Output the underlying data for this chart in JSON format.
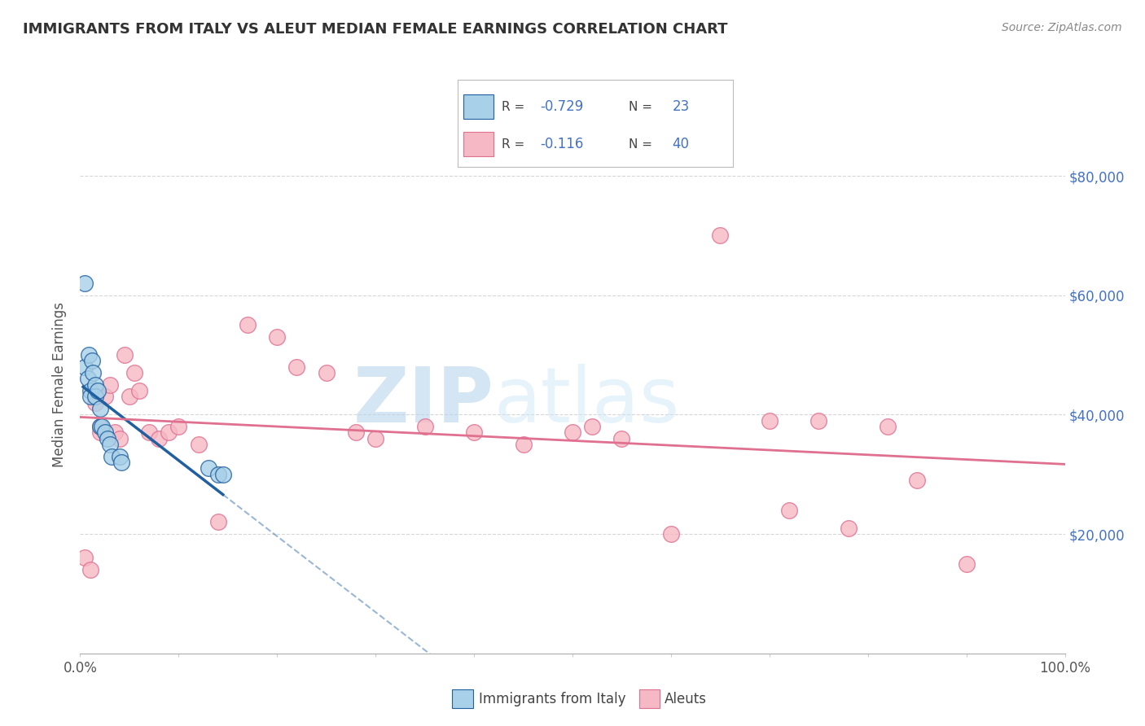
{
  "title": "IMMIGRANTS FROM ITALY VS ALEUT MEDIAN FEMALE EARNINGS CORRELATION CHART",
  "source": "Source: ZipAtlas.com",
  "ylabel": "Median Female Earnings",
  "ytick_labels": [
    "$20,000",
    "$40,000",
    "$60,000",
    "$80,000"
  ],
  "ytick_values": [
    20000,
    40000,
    60000,
    80000
  ],
  "ylim": [
    0,
    90000
  ],
  "xlim": [
    0,
    1.0
  ],
  "italy_color": "#A8D0E8",
  "aleuts_color": "#F5B8C4",
  "italy_line_color": "#2060A0",
  "aleuts_line_color": "#E07090",
  "italy_points_x": [
    0.005,
    0.008,
    0.009,
    0.01,
    0.01,
    0.012,
    0.013,
    0.015,
    0.015,
    0.018,
    0.02,
    0.02,
    0.022,
    0.025,
    0.028,
    0.03,
    0.032,
    0.04,
    0.042,
    0.13,
    0.14,
    0.145,
    0.005
  ],
  "italy_points_y": [
    48000,
    46000,
    50000,
    44000,
    43000,
    49000,
    47000,
    45000,
    43000,
    44000,
    41000,
    38000,
    38000,
    37000,
    36000,
    35000,
    33000,
    33000,
    32000,
    31000,
    30000,
    30000,
    62000
  ],
  "aleuts_points_x": [
    0.005,
    0.01,
    0.015,
    0.02,
    0.02,
    0.025,
    0.03,
    0.035,
    0.04,
    0.045,
    0.05,
    0.055,
    0.06,
    0.07,
    0.08,
    0.09,
    0.1,
    0.12,
    0.14,
    0.17,
    0.2,
    0.22,
    0.25,
    0.28,
    0.3,
    0.35,
    0.4,
    0.45,
    0.5,
    0.52,
    0.55,
    0.6,
    0.65,
    0.7,
    0.72,
    0.75,
    0.78,
    0.82,
    0.85,
    0.9
  ],
  "aleuts_points_y": [
    16000,
    14000,
    42000,
    38000,
    37000,
    43000,
    45000,
    37000,
    36000,
    50000,
    43000,
    47000,
    44000,
    37000,
    36000,
    37000,
    38000,
    35000,
    22000,
    55000,
    53000,
    48000,
    47000,
    37000,
    36000,
    38000,
    37000,
    35000,
    37000,
    38000,
    36000,
    20000,
    70000,
    39000,
    24000,
    39000,
    21000,
    38000,
    29000,
    15000
  ],
  "watermark_zip": "ZIP",
  "watermark_atlas": "atlas",
  "background_color": "#ffffff",
  "grid_color": "#cccccc",
  "legend_box_color": "#4472C4",
  "legend_R_color": "#4472C4",
  "legend_N_color": "#4472C4"
}
